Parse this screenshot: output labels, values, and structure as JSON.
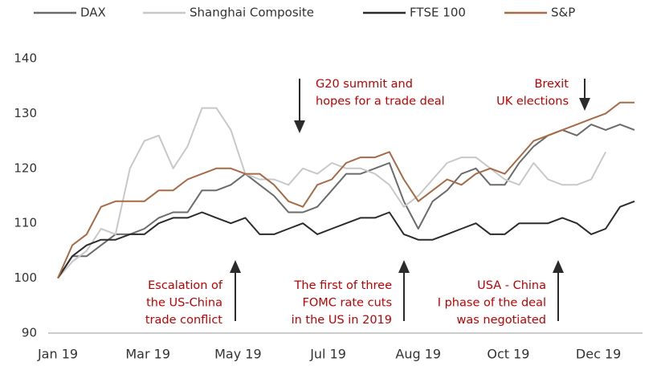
{
  "chart_data": {
    "type": "line",
    "x": [
      0,
      0.16,
      0.32,
      0.48,
      0.64,
      0.8,
      0.96,
      1.12,
      1.28,
      1.44,
      1.6,
      1.76,
      1.92,
      2.08,
      2.24,
      2.4,
      2.56,
      2.72,
      2.88,
      3.04,
      3.2,
      3.36,
      3.52,
      3.68,
      3.84,
      4,
      4.16,
      4.32,
      4.48,
      4.64,
      4.8,
      4.96,
      5.12,
      5.28,
      5.44,
      5.6,
      5.76,
      5.92,
      6.08,
      6.24,
      6.4
    ],
    "series": [
      {
        "name": "DAX",
        "color": "#6b6b6b",
        "values": [
          100,
          104,
          104,
          106,
          108,
          108,
          109,
          111,
          112,
          112,
          116,
          116,
          117,
          119,
          117,
          115,
          112,
          112,
          113,
          116,
          119,
          119,
          120,
          121,
          114,
          109,
          114,
          116,
          119,
          120,
          117,
          117,
          121,
          124,
          126,
          127,
          126,
          128,
          127,
          128,
          127
        ]
      },
      {
        "name": "Shanghai Composite",
        "color": "#c8c8c8",
        "values": [
          100,
          103,
          105,
          109,
          108,
          120,
          125,
          126,
          120,
          124,
          131,
          131,
          127,
          119,
          118,
          118,
          117,
          120,
          119,
          121,
          120,
          120,
          119,
          117,
          113,
          115,
          118,
          121,
          122,
          122,
          120,
          118,
          117,
          121,
          118,
          117,
          117,
          118,
          123,
          null,
          null
        ]
      },
      {
        "name": "FTSE 100",
        "color": "#2b2b2b",
        "values": [
          100,
          104,
          106,
          107,
          107,
          108,
          108,
          110,
          111,
          111,
          112,
          111,
          110,
          111,
          108,
          108,
          109,
          110,
          108,
          109,
          110,
          111,
          111,
          112,
          108,
          107,
          107,
          108,
          109,
          110,
          108,
          108,
          110,
          110,
          110,
          111,
          110,
          108,
          109,
          113,
          114
        ]
      },
      {
        "name": "S&P",
        "color": "#a86a45",
        "values": [
          100,
          106,
          108,
          113,
          114,
          114,
          114,
          116,
          116,
          118,
          119,
          120,
          120,
          119,
          119,
          117,
          114,
          113,
          117,
          118,
          121,
          122,
          122,
          123,
          118,
          114,
          116,
          118,
          117,
          119,
          120,
          119,
          122,
          125,
          126,
          127,
          128,
          129,
          130,
          132,
          132
        ]
      }
    ],
    "xlim": [
      0,
      6.4
    ],
    "xticks": [
      {
        "value": 0,
        "label": "Jan 19"
      },
      {
        "value": 1,
        "label": "Mar 19"
      },
      {
        "value": 2,
        "label": "May 19"
      },
      {
        "value": 3,
        "label": "Jul 19"
      },
      {
        "value": 4,
        "label": "Aug 19"
      },
      {
        "value": 5,
        "label": "Oct 19"
      },
      {
        "value": 6,
        "label": "Dec 19"
      }
    ],
    "ylim": [
      90,
      140
    ],
    "yticks": [
      90,
      100,
      110,
      120,
      130,
      140
    ],
    "grid": false,
    "legend": "top",
    "annotations": [
      {
        "lines": [
          "G20 summit and",
          "hopes for a trade deal"
        ]
      },
      {
        "lines": [
          "Brexit",
          "UK elections"
        ]
      },
      {
        "lines": [
          "Escalation of",
          "the US-China",
          "trade conflict"
        ]
      },
      {
        "lines": [
          "The first of three",
          "FOMC rate cuts",
          "in the US in 2019"
        ]
      },
      {
        "lines": [
          "USA - China",
          "I phase of the deal",
          "was negotiated"
        ]
      }
    ]
  }
}
